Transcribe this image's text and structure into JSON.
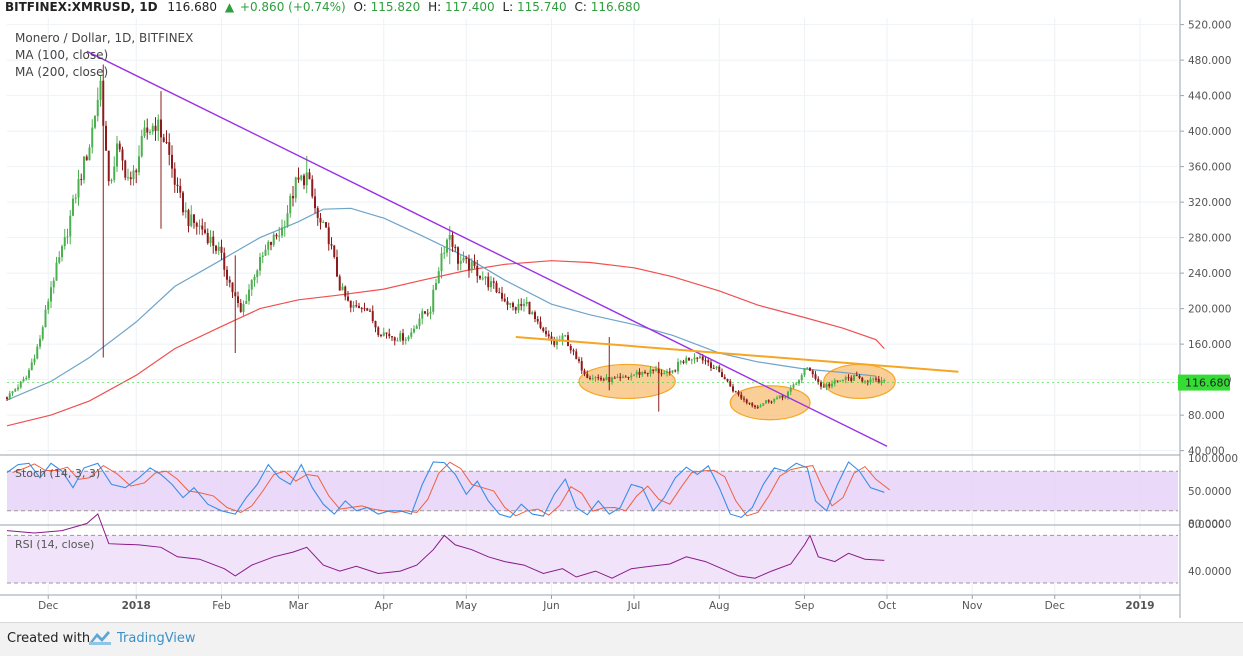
{
  "header": {
    "symbol": "BITFINEX:XMRUSD, 1D",
    "last": "116.680",
    "change": "+0.860 (+0.74%)",
    "o_label": "O:",
    "o_value": "115.820",
    "h_label": "H:",
    "h_value": "117.400",
    "l_label": "L:",
    "l_value": "115.740",
    "c_label": "C:",
    "c_value": "116.680"
  },
  "legend": {
    "title": "Monero / Dollar, 1D, BITFINEX",
    "ma100": "MA (100, close)",
    "ma200": "MA (200, close)"
  },
  "indicators": {
    "stoch_label": "Stoch (14, 3, 3)",
    "rsi_label": "RSI (14, close)"
  },
  "price_label": "116.680",
  "footer": {
    "created": "Created with",
    "brand": "TradingView"
  },
  "colors": {
    "up": "#4caf50",
    "down": "#8e1b1b",
    "ma100": "#6fa4c9",
    "ma200": "#f05050",
    "trend_down": "#9b30e8",
    "resistance": "#f5a623",
    "ellipse_fill": "#f7b55f",
    "stoch_band": "#e6cff7",
    "stoch_k": "#3a8ee6",
    "stoch_d": "#f06040",
    "rsi_band": "#f1e4fa",
    "rsi_line": "#8a1a8a",
    "price_tag": "#33dd33"
  },
  "chart_data": [
    {
      "type": "candlestick",
      "title": "Monero / Dollar, 1D, BITFINEX",
      "ylim": [
        40,
        520
      ],
      "y_ticks": [
        "520.000",
        "480.000",
        "440.000",
        "400.000",
        "360.000",
        "320.000",
        "280.000",
        "240.000",
        "200.000",
        "160.000",
        "120.000",
        "80.000",
        "40.000"
      ],
      "x_ticks": [
        "Dec",
        "2018",
        "Feb",
        "Mar",
        "Apr",
        "May",
        "Jun",
        "Jul",
        "Aug",
        "Sep",
        "Oct",
        "Nov",
        "Dec",
        "2019"
      ],
      "price_path": [
        [
          "2017-11-15",
          100
        ],
        [
          "2017-11-22",
          122
        ],
        [
          "2017-11-27",
          165
        ],
        [
          "2017-12-01",
          225
        ],
        [
          "2017-12-06",
          275
        ],
        [
          "2017-12-10",
          330
        ],
        [
          "2017-12-15",
          385
        ],
        [
          "2017-12-19",
          455
        ],
        [
          "2017-12-22",
          335
        ],
        [
          "2017-12-25",
          380
        ],
        [
          "2017-12-30",
          340
        ],
        [
          "2018-01-04",
          395
        ],
        [
          "2018-01-08",
          410
        ],
        [
          "2018-01-12",
          385
        ],
        [
          "2018-01-16",
          330
        ],
        [
          "2018-01-20",
          300
        ],
        [
          "2018-01-25",
          290
        ],
        [
          "2018-01-31",
          265
        ],
        [
          "2018-02-05",
          220
        ],
        [
          "2018-02-08",
          195
        ],
        [
          "2018-02-13",
          240
        ],
        [
          "2018-02-18",
          270
        ],
        [
          "2018-02-23",
          290
        ],
        [
          "2018-02-28",
          340
        ],
        [
          "2018-03-04",
          350
        ],
        [
          "2018-03-08",
          300
        ],
        [
          "2018-03-12",
          280
        ],
        [
          "2018-03-16",
          225
        ],
        [
          "2018-03-20",
          200
        ],
        [
          "2018-03-25",
          205
        ],
        [
          "2018-03-30",
          175
        ],
        [
          "2018-04-05",
          168
        ],
        [
          "2018-04-10",
          168
        ],
        [
          "2018-04-14",
          190
        ],
        [
          "2018-04-18",
          200
        ],
        [
          "2018-04-22",
          262
        ],
        [
          "2018-04-25",
          285
        ],
        [
          "2018-04-28",
          255
        ],
        [
          "2018-05-04",
          245
        ],
        [
          "2018-05-08",
          232
        ],
        [
          "2018-05-13",
          218
        ],
        [
          "2018-05-18",
          200
        ],
        [
          "2018-05-23",
          205
        ],
        [
          "2018-05-28",
          175
        ],
        [
          "2018-06-02",
          160
        ],
        [
          "2018-06-06",
          168
        ],
        [
          "2018-06-10",
          142
        ],
        [
          "2018-06-14",
          125
        ],
        [
          "2018-06-20",
          120
        ],
        [
          "2018-06-26",
          120
        ],
        [
          "2018-07-02",
          127
        ],
        [
          "2018-07-09",
          130
        ],
        [
          "2018-07-14",
          125
        ],
        [
          "2018-07-18",
          140
        ],
        [
          "2018-07-24",
          148
        ],
        [
          "2018-07-28",
          140
        ],
        [
          "2018-08-02",
          125
        ],
        [
          "2018-08-07",
          105
        ],
        [
          "2018-08-11",
          95
        ],
        [
          "2018-08-15",
          90
        ],
        [
          "2018-08-19",
          97
        ],
        [
          "2018-08-24",
          100
        ],
        [
          "2018-08-29",
          115
        ],
        [
          "2018-09-01",
          132
        ],
        [
          "2018-09-04",
          128
        ],
        [
          "2018-09-07",
          112
        ],
        [
          "2018-09-11",
          115
        ],
        [
          "2018-09-15",
          120
        ],
        [
          "2018-09-19",
          122
        ],
        [
          "2018-09-23",
          120
        ],
        [
          "2018-09-27",
          118
        ],
        [
          "2018-09-30",
          116.68
        ]
      ],
      "spikes": [
        {
          "date": "2017-12-20",
          "high": 475,
          "low": 145
        },
        {
          "date": "2018-01-10",
          "high": 445,
          "low": 290
        },
        {
          "date": "2018-02-06",
          "high": 260,
          "low": 150
        },
        {
          "date": "2018-03-04",
          "high": 372,
          "low": 330
        },
        {
          "date": "2018-04-25",
          "high": 293,
          "low": 250
        },
        {
          "date": "2018-06-22",
          "high": 168,
          "low": 108
        },
        {
          "date": "2018-07-10",
          "high": 140,
          "low": 84
        }
      ],
      "ma100": [
        [
          "2017-11-15",
          97
        ],
        [
          "2017-12-01",
          118
        ],
        [
          "2017-12-15",
          145
        ],
        [
          "2018-01-01",
          185
        ],
        [
          "2018-01-15",
          225
        ],
        [
          "2018-02-01",
          255
        ],
        [
          "2018-02-15",
          280
        ],
        [
          "2018-03-01",
          298
        ],
        [
          "2018-03-10",
          312
        ],
        [
          "2018-03-20",
          313
        ],
        [
          "2018-04-01",
          302
        ],
        [
          "2018-04-15",
          282
        ],
        [
          "2018-05-01",
          258
        ],
        [
          "2018-05-15",
          232
        ],
        [
          "2018-06-01",
          205
        ],
        [
          "2018-06-15",
          193
        ],
        [
          "2018-07-01",
          182
        ],
        [
          "2018-07-15",
          170
        ],
        [
          "2018-08-01",
          150
        ],
        [
          "2018-08-15",
          140
        ],
        [
          "2018-09-01",
          132
        ],
        [
          "2018-09-15",
          128
        ],
        [
          "2018-09-27",
          124
        ]
      ],
      "ma200": [
        [
          "2017-11-15",
          68
        ],
        [
          "2017-12-01",
          80
        ],
        [
          "2017-12-15",
          96
        ],
        [
          "2018-01-01",
          125
        ],
        [
          "2018-01-15",
          155
        ],
        [
          "2018-02-01",
          180
        ],
        [
          "2018-02-15",
          200
        ],
        [
          "2018-03-01",
          210
        ],
        [
          "2018-03-15",
          215
        ],
        [
          "2018-04-01",
          222
        ],
        [
          "2018-04-15",
          232
        ],
        [
          "2018-05-01",
          243
        ],
        [
          "2018-05-15",
          250
        ],
        [
          "2018-06-01",
          254
        ],
        [
          "2018-06-15",
          252
        ],
        [
          "2018-07-01",
          246
        ],
        [
          "2018-07-15",
          236
        ],
        [
          "2018-08-01",
          220
        ],
        [
          "2018-08-15",
          204
        ],
        [
          "2018-09-01",
          190
        ],
        [
          "2018-09-15",
          178
        ],
        [
          "2018-09-27",
          165
        ],
        [
          "2018-09-30",
          155
        ]
      ],
      "trend_down": [
        [
          "2017-12-14",
          490
        ],
        [
          "2018-10-01",
          45
        ]
      ],
      "resistance": [
        [
          "2018-05-19",
          168
        ],
        [
          "2018-10-27",
          129
        ]
      ],
      "ellipses": [
        {
          "from": "2018-06-11",
          "to": "2018-07-16",
          "center": 118
        },
        {
          "from": "2018-08-05",
          "to": "2018-09-03",
          "center": 94
        },
        {
          "from": "2018-09-08",
          "to": "2018-10-04",
          "center": 118
        }
      ],
      "last_price": 116.68
    },
    {
      "type": "line",
      "name": "Stoch (14, 3, 3)",
      "ylim": [
        0,
        100
      ],
      "y_ticks": [
        "100.0000",
        "50.0000",
        "0.0000"
      ],
      "bands": [
        20,
        80
      ],
      "k": [
        [
          "2017-11-15",
          78
        ],
        [
          "2017-11-19",
          90
        ],
        [
          "2017-11-23",
          92
        ],
        [
          "2017-11-27",
          70
        ],
        [
          "2017-12-01",
          92
        ],
        [
          "2017-12-05",
          80
        ],
        [
          "2017-12-09",
          55
        ],
        [
          "2017-12-13",
          85
        ],
        [
          "2017-12-18",
          92
        ],
        [
          "2017-12-23",
          60
        ],
        [
          "2017-12-28",
          55
        ],
        [
          "2018-01-02",
          70
        ],
        [
          "2018-01-06",
          85
        ],
        [
          "2018-01-10",
          75
        ],
        [
          "2018-01-14",
          60
        ],
        [
          "2018-01-18",
          40
        ],
        [
          "2018-01-22",
          55
        ],
        [
          "2018-01-27",
          30
        ],
        [
          "2018-02-01",
          20
        ],
        [
          "2018-02-06",
          15
        ],
        [
          "2018-02-10",
          40
        ],
        [
          "2018-02-14",
          60
        ],
        [
          "2018-02-18",
          90
        ],
        [
          "2018-02-22",
          70
        ],
        [
          "2018-02-26",
          60
        ],
        [
          "2018-03-02",
          90
        ],
        [
          "2018-03-06",
          55
        ],
        [
          "2018-03-10",
          30
        ],
        [
          "2018-03-14",
          15
        ],
        [
          "2018-03-18",
          35
        ],
        [
          "2018-03-22",
          20
        ],
        [
          "2018-03-26",
          25
        ],
        [
          "2018-03-30",
          15
        ],
        [
          "2018-04-03",
          20
        ],
        [
          "2018-04-07",
          20
        ],
        [
          "2018-04-11",
          15
        ],
        [
          "2018-04-15",
          60
        ],
        [
          "2018-04-19",
          94
        ],
        [
          "2018-04-23",
          93
        ],
        [
          "2018-04-27",
          75
        ],
        [
          "2018-05-01",
          45
        ],
        [
          "2018-05-05",
          65
        ],
        [
          "2018-05-09",
          35
        ],
        [
          "2018-05-13",
          15
        ],
        [
          "2018-05-17",
          10
        ],
        [
          "2018-05-21",
          30
        ],
        [
          "2018-05-25",
          15
        ],
        [
          "2018-05-29",
          12
        ],
        [
          "2018-06-02",
          45
        ],
        [
          "2018-06-06",
          68
        ],
        [
          "2018-06-10",
          25
        ],
        [
          "2018-06-14",
          14
        ],
        [
          "2018-06-18",
          35
        ],
        [
          "2018-06-22",
          15
        ],
        [
          "2018-06-26",
          25
        ],
        [
          "2018-06-30",
          60
        ],
        [
          "2018-07-04",
          55
        ],
        [
          "2018-07-08",
          20
        ],
        [
          "2018-07-12",
          40
        ],
        [
          "2018-07-16",
          70
        ],
        [
          "2018-07-20",
          86
        ],
        [
          "2018-07-24",
          75
        ],
        [
          "2018-07-28",
          88
        ],
        [
          "2018-08-01",
          55
        ],
        [
          "2018-08-05",
          15
        ],
        [
          "2018-08-09",
          10
        ],
        [
          "2018-08-13",
          25
        ],
        [
          "2018-08-17",
          60
        ],
        [
          "2018-08-21",
          85
        ],
        [
          "2018-08-25",
          80
        ],
        [
          "2018-08-29",
          92
        ],
        [
          "2018-09-02",
          85
        ],
        [
          "2018-09-05",
          35
        ],
        [
          "2018-09-09",
          20
        ],
        [
          "2018-09-13",
          60
        ],
        [
          "2018-09-17",
          94
        ],
        [
          "2018-09-21",
          80
        ],
        [
          "2018-09-25",
          55
        ],
        [
          "2018-09-30",
          48
        ]
      ]
    },
    {
      "type": "line",
      "name": "RSI (14, close)",
      "ylim": [
        28,
        84
      ],
      "y_ticks": [
        "80.0000",
        "40.0000"
      ],
      "bands": [
        30,
        70
      ],
      "rsi": [
        [
          "2017-11-15",
          74
        ],
        [
          "2017-11-25",
          72
        ],
        [
          "2017-12-05",
          74
        ],
        [
          "2017-12-14",
          80
        ],
        [
          "2017-12-18",
          88
        ],
        [
          "2017-12-22",
          63
        ],
        [
          "2018-01-02",
          62
        ],
        [
          "2018-01-10",
          60
        ],
        [
          "2018-01-16",
          52
        ],
        [
          "2018-01-24",
          50
        ],
        [
          "2018-02-02",
          42
        ],
        [
          "2018-02-06",
          36
        ],
        [
          "2018-02-12",
          45
        ],
        [
          "2018-02-20",
          52
        ],
        [
          "2018-02-27",
          56
        ],
        [
          "2018-03-04",
          60
        ],
        [
          "2018-03-10",
          45
        ],
        [
          "2018-03-16",
          40
        ],
        [
          "2018-03-22",
          44
        ],
        [
          "2018-03-30",
          38
        ],
        [
          "2018-04-07",
          40
        ],
        [
          "2018-04-13",
          45
        ],
        [
          "2018-04-19",
          58
        ],
        [
          "2018-04-23",
          70
        ],
        [
          "2018-04-27",
          62
        ],
        [
          "2018-05-03",
          58
        ],
        [
          "2018-05-09",
          52
        ],
        [
          "2018-05-15",
          48
        ],
        [
          "2018-05-22",
          45
        ],
        [
          "2018-05-29",
          38
        ],
        [
          "2018-06-05",
          42
        ],
        [
          "2018-06-10",
          35
        ],
        [
          "2018-06-17",
          40
        ],
        [
          "2018-06-23",
          34
        ],
        [
          "2018-06-30",
          42
        ],
        [
          "2018-07-07",
          44
        ],
        [
          "2018-07-14",
          46
        ],
        [
          "2018-07-20",
          52
        ],
        [
          "2018-07-27",
          48
        ],
        [
          "2018-08-02",
          42
        ],
        [
          "2018-08-08",
          36
        ],
        [
          "2018-08-14",
          34
        ],
        [
          "2018-08-20",
          40
        ],
        [
          "2018-08-27",
          46
        ],
        [
          "2018-09-01",
          62
        ],
        [
          "2018-09-03",
          70
        ],
        [
          "2018-09-06",
          52
        ],
        [
          "2018-09-12",
          48
        ],
        [
          "2018-09-17",
          55
        ],
        [
          "2018-09-23",
          50
        ],
        [
          "2018-09-30",
          49
        ]
      ]
    }
  ]
}
